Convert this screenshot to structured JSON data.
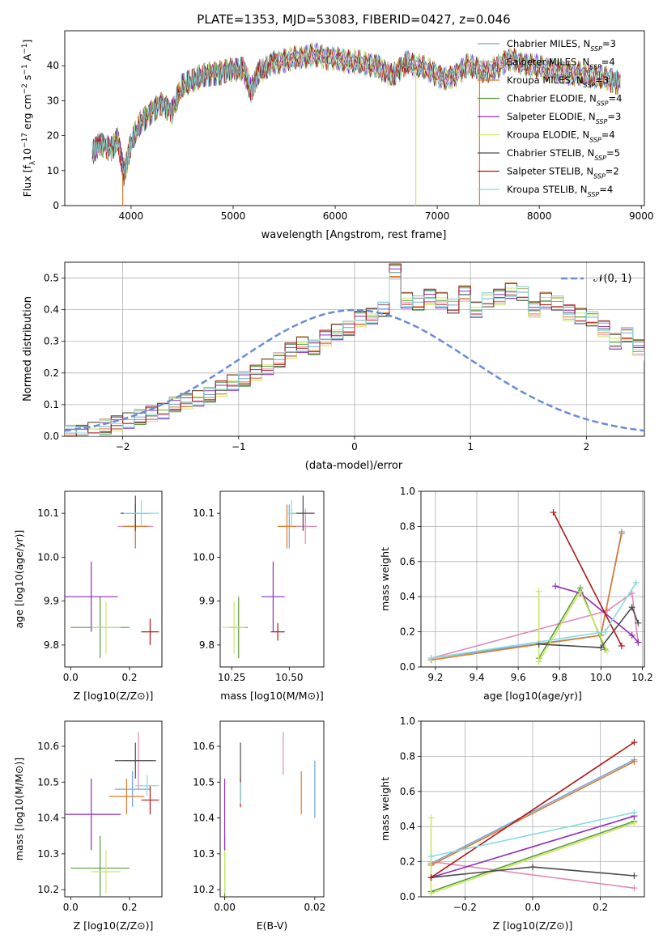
{
  "colors": {
    "Chabrier MILES": "#6ea6e0",
    "Salpeter MILES": "#e08ab8",
    "Kroupa MILES": "#e07a2a",
    "Chabrier ELODIE": "#5a9a3a",
    "Salpeter ELODIE": "#8e2bbf",
    "Kroupa ELODIE": "#c9e860",
    "Chabrier STELIB": "#4a4a4a",
    "Salpeter STELIB": "#b01818",
    "Kroupa STELIB": "#86dcdc"
  },
  "chart_data": [
    {
      "id": "spectrum",
      "type": "line",
      "title": "PLATE=1353, MJD=53083, FIBERID=0427, z=0.046",
      "xlabel": "wavelength [Angstrom, rest frame]",
      "ylabel": "Flux [f_λ10^-17 erg cm^-2 s^-1 A^-1]",
      "xlim": [
        3350,
        9030
      ],
      "ylim": [
        0,
        50
      ],
      "xticks": [
        "4000",
        "5000",
        "6000",
        "7000",
        "8000",
        "9000"
      ],
      "yticks": [
        "0",
        "10",
        "20",
        "30",
        "40"
      ],
      "grid": false,
      "legend_position": "top-right",
      "legend": [
        {
          "name": "Chabrier MILES",
          "nssp": "3"
        },
        {
          "name": "Salpeter MILES",
          "nssp": "4"
        },
        {
          "name": "Kroupa MILES",
          "nssp": "3"
        },
        {
          "name": "Chabrier ELODIE",
          "nssp": "4"
        },
        {
          "name": "Salpeter ELODIE",
          "nssp": "3"
        },
        {
          "name": "Kroupa ELODIE",
          "nssp": "4"
        },
        {
          "name": "Chabrier STELIB",
          "nssp": "5"
        },
        {
          "name": "Salpeter STELIB",
          "nssp": "2"
        },
        {
          "name": "Kroupa STELIB",
          "nssp": "4"
        }
      ],
      "x": [
        3620,
        3700,
        3800,
        3870,
        3930,
        3970,
        4000,
        4100,
        4200,
        4300,
        4400,
        4500,
        4600,
        4700,
        4800,
        4900,
        5000,
        5100,
        5175,
        5250,
        5400,
        5600,
        5800,
        6000,
        6200,
        6400,
        6563,
        6700,
        6900,
        7100,
        7300,
        7500,
        7700,
        7900,
        8100,
        8300,
        8500,
        8700,
        8800
      ],
      "y": [
        15,
        18,
        16,
        19,
        9,
        14,
        18,
        24,
        27,
        29,
        27,
        34,
        36,
        37,
        38,
        38,
        39,
        39,
        33,
        38,
        41,
        42,
        43,
        42,
        41,
        40,
        37,
        41,
        39,
        36,
        40,
        38,
        42,
        40,
        39,
        38,
        37,
        36,
        35
      ]
    },
    {
      "id": "residuals",
      "type": "step",
      "xlabel": "(data-model)/error",
      "ylabel": "Normed distribution",
      "xlim": [
        -2.5,
        2.5
      ],
      "ylim": [
        0,
        0.55
      ],
      "xticks": [
        "−2",
        "−1",
        "0",
        "1",
        "2"
      ],
      "yticks": [
        "0.0",
        "0.1",
        "0.2",
        "0.3",
        "0.4",
        "0.5"
      ],
      "grid": true,
      "legend": "𝒩(0, 1)",
      "legend_position": "top-right",
      "bin_start": -2.5,
      "bin_width": 0.1,
      "heights": [
        0.01,
        0.01,
        0.02,
        0.03,
        0.04,
        0.05,
        0.06,
        0.07,
        0.08,
        0.1,
        0.11,
        0.12,
        0.13,
        0.15,
        0.17,
        0.18,
        0.2,
        0.22,
        0.24,
        0.27,
        0.29,
        0.28,
        0.31,
        0.33,
        0.34,
        0.37,
        0.38,
        0.4,
        0.52,
        0.43,
        0.42,
        0.44,
        0.43,
        0.41,
        0.45,
        0.4,
        0.43,
        0.44,
        0.46,
        0.45,
        0.4,
        0.43,
        0.42,
        0.39,
        0.38,
        0.37,
        0.34,
        0.3,
        0.32,
        0.28,
        0.26,
        0.25,
        0.22,
        0.2,
        0.19,
        0.17,
        0.15,
        0.12,
        0.11,
        0.1,
        0.09,
        0.06,
        0.08,
        0.06,
        0.05,
        0.05,
        0.04,
        0.03,
        0.04,
        0.03,
        0.02,
        0.02,
        0.01,
        0.01,
        0.01,
        0.01,
        0.01,
        0.01,
        0.01,
        0.01,
        0.01
      ]
    },
    {
      "id": "age_vs_Z",
      "type": "errorbar",
      "xlabel": "Z [log10(Z/Z⊙)]",
      "ylabel": "age [log10(age/yr)]",
      "xlim": [
        -0.02,
        0.31
      ],
      "ylim": [
        9.75,
        10.15
      ],
      "xticks": [
        "0.0",
        "0.2"
      ],
      "yticks": [
        "9.8",
        "9.9",
        "10.0",
        "10.1"
      ],
      "points": [
        {
          "series": "Chabrier MILES",
          "x": 0.22,
          "y": 10.07,
          "xerr": 0.05,
          "yerr": 0.05
        },
        {
          "series": "Salpeter MILES",
          "x": 0.22,
          "y": 10.07,
          "xerr": 0.06,
          "yerr": 0.04
        },
        {
          "series": "Kroupa MILES",
          "x": 0.22,
          "y": 10.07,
          "xerr": 0.04,
          "yerr": 0.05
        },
        {
          "series": "Chabrier ELODIE",
          "x": 0.1,
          "y": 9.84,
          "xerr": 0.1,
          "yerr": 0.07
        },
        {
          "series": "Salpeter ELODIE",
          "x": 0.07,
          "y": 9.91,
          "xerr": 0.09,
          "yerr": 0.08
        },
        {
          "series": "Kroupa ELODIE",
          "x": 0.12,
          "y": 9.84,
          "xerr": 0.05,
          "yerr": 0.06
        },
        {
          "series": "Chabrier STELIB",
          "x": 0.22,
          "y": 10.1,
          "xerr": 0.05,
          "yerr": 0.04
        },
        {
          "series": "Salpeter STELIB",
          "x": 0.27,
          "y": 9.83,
          "xerr": 0.03,
          "yerr": 0.03
        },
        {
          "series": "Kroupa STELIB",
          "x": 0.24,
          "y": 10.1,
          "xerr": 0.06,
          "yerr": 0.03
        }
      ]
    },
    {
      "id": "age_vs_mass",
      "type": "errorbar",
      "xlabel": "mass [log10(M/M⊙)]",
      "ylabel": "",
      "xlim": [
        10.2,
        10.65
      ],
      "ylim": [
        9.75,
        10.15
      ],
      "xticks": [
        "10.25",
        "10.50"
      ],
      "yticks": [
        "9.8",
        "9.9",
        "10.0",
        "10.1"
      ],
      "points": [
        {
          "series": "Chabrier MILES",
          "x": 10.5,
          "y": 10.07,
          "xerr": 0.05,
          "yerr": 0.05
        },
        {
          "series": "Salpeter MILES",
          "x": 10.57,
          "y": 10.07,
          "xerr": 0.05,
          "yerr": 0.04
        },
        {
          "series": "Kroupa MILES",
          "x": 10.49,
          "y": 10.07,
          "xerr": 0.04,
          "yerr": 0.05
        },
        {
          "series": "Chabrier ELODIE",
          "x": 10.28,
          "y": 9.84,
          "xerr": 0.04,
          "yerr": 0.07
        },
        {
          "series": "Salpeter ELODIE",
          "x": 10.43,
          "y": 9.91,
          "xerr": 0.05,
          "yerr": 0.08
        },
        {
          "series": "Kroupa ELODIE",
          "x": 10.26,
          "y": 9.84,
          "xerr": 0.05,
          "yerr": 0.06
        },
        {
          "series": "Chabrier STELIB",
          "x": 10.56,
          "y": 10.1,
          "xerr": 0.05,
          "yerr": 0.04
        },
        {
          "series": "Salpeter STELIB",
          "x": 10.45,
          "y": 9.83,
          "xerr": 0.03,
          "yerr": 0.02
        },
        {
          "series": "Kroupa STELIB",
          "x": 10.51,
          "y": 10.1,
          "xerr": 0.02,
          "yerr": 0.03
        }
      ]
    },
    {
      "id": "weight_vs_age",
      "type": "line",
      "xlabel": "age [log10(age/yr)]",
      "ylabel": "mass weight",
      "xlim": [
        9.13,
        10.21
      ],
      "ylim": [
        0,
        1
      ],
      "xticks": [
        "9.2",
        "9.4",
        "9.6",
        "9.8",
        "10.0",
        "10.2"
      ],
      "yticks": [
        "0.0",
        "0.2",
        "0.4",
        "0.6",
        "0.8",
        "1.0"
      ],
      "grid": true,
      "series": [
        {
          "name": "Chabrier MILES",
          "x": [
            9.18,
            10.0,
            10.1
          ],
          "y": [
            0.05,
            0.18,
            0.77
          ]
        },
        {
          "name": "Salpeter MILES",
          "x": [
            9.18,
            10.03,
            10.15,
            10.18
          ],
          "y": [
            0.05,
            0.32,
            0.42,
            0.14
          ]
        },
        {
          "name": "Kroupa MILES",
          "x": [
            9.18,
            10.0,
            10.1
          ],
          "y": [
            0.04,
            0.18,
            0.76
          ]
        },
        {
          "name": "Chabrier ELODIE",
          "x": [
            9.7,
            9.9,
            10.02
          ],
          "y": [
            0.05,
            0.45,
            0.1
          ]
        },
        {
          "name": "Salpeter ELODIE",
          "x": [
            9.78,
            9.9,
            10.15,
            10.18
          ],
          "y": [
            0.46,
            0.42,
            0.18,
            0.14
          ]
        },
        {
          "name": "Kroupa ELODIE",
          "x": [
            9.7,
            9.7,
            9.9,
            10.03
          ],
          "y": [
            0.43,
            0.03,
            0.43,
            0.09
          ]
        },
        {
          "name": "Chabrier STELIB",
          "x": [
            9.7,
            10.0,
            10.15,
            10.18
          ],
          "y": [
            0.13,
            0.11,
            0.34,
            0.25
          ]
        },
        {
          "name": "Salpeter STELIB",
          "x": [
            9.77,
            10.1
          ],
          "y": [
            0.88,
            0.12
          ]
        },
        {
          "name": "Kroupa STELIB",
          "x": [
            9.18,
            10.02,
            10.17
          ],
          "y": [
            0.05,
            0.2,
            0.48
          ]
        }
      ]
    },
    {
      "id": "mass_vs_Z",
      "type": "errorbar",
      "xlabel": "Z [log10(Z/Z⊙)]",
      "ylabel": "mass [log10(M/M⊙)]",
      "xlim": [
        -0.02,
        0.31
      ],
      "ylim": [
        10.18,
        10.67
      ],
      "xticks": [
        "0.0",
        "0.2"
      ],
      "yticks": [
        "10.2",
        "10.3",
        "10.4",
        "10.5",
        "10.6"
      ],
      "points": [
        {
          "series": "Chabrier MILES",
          "x": 0.21,
          "y": 10.48,
          "xerr": 0.06,
          "yerr": 0.05
        },
        {
          "series": "Salpeter MILES",
          "x": 0.23,
          "y": 10.56,
          "xerr": 0.05,
          "yerr": 0.08
        },
        {
          "series": "Kroupa MILES",
          "x": 0.19,
          "y": 10.46,
          "xerr": 0.06,
          "yerr": 0.05
        },
        {
          "series": "Chabrier ELODIE",
          "x": 0.1,
          "y": 10.26,
          "xerr": 0.1,
          "yerr": 0.09
        },
        {
          "series": "Salpeter ELODIE",
          "x": 0.07,
          "y": 10.41,
          "xerr": 0.1,
          "yerr": 0.1
        },
        {
          "series": "Kroupa ELODIE",
          "x": 0.12,
          "y": 10.25,
          "xerr": 0.05,
          "yerr": 0.06
        },
        {
          "series": "Chabrier STELIB",
          "x": 0.22,
          "y": 10.56,
          "xerr": 0.07,
          "yerr": 0.05
        },
        {
          "series": "Salpeter STELIB",
          "x": 0.27,
          "y": 10.45,
          "xerr": 0.03,
          "yerr": 0.04
        },
        {
          "series": "Kroupa STELIB",
          "x": 0.26,
          "y": 10.49,
          "xerr": 0.04,
          "yerr": 0.03
        }
      ]
    },
    {
      "id": "mass_vs_EBV",
      "type": "errorbar",
      "xlabel": "E(B-V)",
      "ylabel": "",
      "xlim": [
        -0.001,
        0.022
      ],
      "ylim": [
        10.18,
        10.67
      ],
      "xticks": [
        "0.00",
        "0.02"
      ],
      "yticks": [
        "10.2",
        "10.3",
        "10.4",
        "10.5",
        "10.6"
      ],
      "points": [
        {
          "series": "Chabrier MILES",
          "x": 0.02,
          "y": 10.48,
          "xerr": 0.0,
          "yerr": 0.08
        },
        {
          "series": "Salpeter MILES",
          "x": 0.013,
          "y": 10.58,
          "xerr": 0.0,
          "yerr": 0.06
        },
        {
          "series": "Kroupa MILES",
          "x": 0.017,
          "y": 10.47,
          "xerr": 0.0,
          "yerr": 0.06
        },
        {
          "series": "Chabrier ELODIE",
          "x": 0.0,
          "y": 10.26,
          "xerr": 0.0,
          "yerr": 0.09
        },
        {
          "series": "Salpeter ELODIE",
          "x": 0.0,
          "y": 10.41,
          "xerr": 0.0,
          "yerr": 0.1
        },
        {
          "series": "Kroupa ELODIE",
          "x": 0.0,
          "y": 10.25,
          "xerr": 0.0,
          "yerr": 0.06
        },
        {
          "series": "Chabrier STELIB",
          "x": 0.0035,
          "y": 10.53,
          "xerr": 0.0,
          "yerr": 0.08
        },
        {
          "series": "Salpeter STELIB",
          "x": 0.0035,
          "y": 10.47,
          "xerr": 0.0,
          "yerr": 0.04
        },
        {
          "series": "Kroupa STELIB",
          "x": 0.0035,
          "y": 10.47,
          "xerr": 0.0,
          "yerr": 0.03
        }
      ]
    },
    {
      "id": "weight_vs_Z",
      "type": "line",
      "xlabel": "Z [log10(Z/Z⊙)]",
      "ylabel": "mass weight",
      "xlim": [
        -0.33,
        0.33
      ],
      "ylim": [
        0,
        1
      ],
      "xticks": [
        "−0.2",
        "0.0",
        "0.2"
      ],
      "yticks": [
        "0.0",
        "0.2",
        "0.4",
        "0.6",
        "0.8",
        "1.0"
      ],
      "grid": true,
      "series": [
        {
          "name": "Chabrier MILES",
          "x": [
            -0.3,
            0.3
          ],
          "y": [
            0.19,
            0.78
          ]
        },
        {
          "name": "Salpeter MILES",
          "x": [
            -0.3,
            0.3
          ],
          "y": [
            0.2,
            0.05
          ]
        },
        {
          "name": "Kroupa MILES",
          "x": [
            -0.3,
            0.3
          ],
          "y": [
            0.18,
            0.77
          ]
        },
        {
          "name": "Chabrier ELODIE",
          "x": [
            -0.3,
            0.3
          ],
          "y": [
            0.03,
            0.43
          ]
        },
        {
          "name": "Salpeter ELODIE",
          "x": [
            -0.3,
            0.3
          ],
          "y": [
            0.11,
            0.46
          ]
        },
        {
          "name": "Kroupa ELODIE",
          "x": [
            -0.3,
            -0.3,
            0.3
          ],
          "y": [
            0.45,
            0.02,
            0.42
          ]
        },
        {
          "name": "Chabrier STELIB",
          "x": [
            -0.3,
            0.0,
            0.3
          ],
          "y": [
            0.11,
            0.17,
            0.12
          ]
        },
        {
          "name": "Salpeter STELIB",
          "x": [
            -0.3,
            0.3
          ],
          "y": [
            0.11,
            0.88
          ]
        },
        {
          "name": "Kroupa STELIB",
          "x": [
            -0.3,
            0.3
          ],
          "y": [
            0.23,
            0.48
          ]
        }
      ]
    }
  ]
}
